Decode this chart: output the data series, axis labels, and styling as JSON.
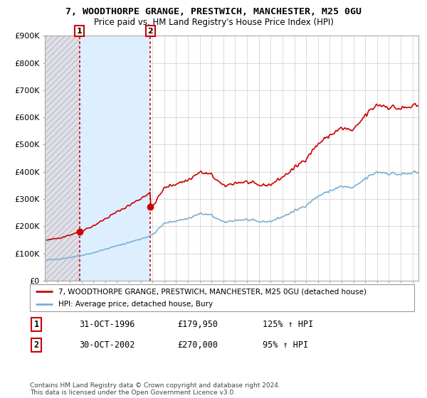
{
  "title": "7, WOODTHORPE GRANGE, PRESTWICH, MANCHESTER, M25 0GU",
  "subtitle": "Price paid vs. HM Land Registry's House Price Index (HPI)",
  "legend_line1": "7, WOODTHORPE GRANGE, PRESTWICH, MANCHESTER, M25 0GU (detached house)",
  "legend_line2": "HPI: Average price, detached house, Bury",
  "sale1_label": "1",
  "sale1_date": "31-OCT-1996",
  "sale1_price": "£179,950",
  "sale1_hpi": "125% ↑ HPI",
  "sale1_year": 1996.833,
  "sale1_value": 179950,
  "sale2_label": "2",
  "sale2_date": "30-OCT-2002",
  "sale2_price": "£270,000",
  "sale2_hpi": "95% ↑ HPI",
  "sale2_year": 2002.833,
  "sale2_value": 270000,
  "footer": "Contains HM Land Registry data © Crown copyright and database right 2024.\nThis data is licensed under the Open Government Licence v3.0.",
  "ylim": [
    0,
    900000
  ],
  "xlim": [
    1993.9,
    2025.5
  ],
  "yticks": [
    0,
    100000,
    200000,
    300000,
    400000,
    500000,
    600000,
    700000,
    800000,
    900000
  ],
  "ytick_labels": [
    "£0",
    "£100K",
    "£200K",
    "£300K",
    "£400K",
    "£500K",
    "£600K",
    "£700K",
    "£800K",
    "£900K"
  ],
  "red_color": "#cc0000",
  "blue_color": "#7bafd4",
  "hatch_fill": "#dde8f0",
  "background_color": "#ffffff"
}
